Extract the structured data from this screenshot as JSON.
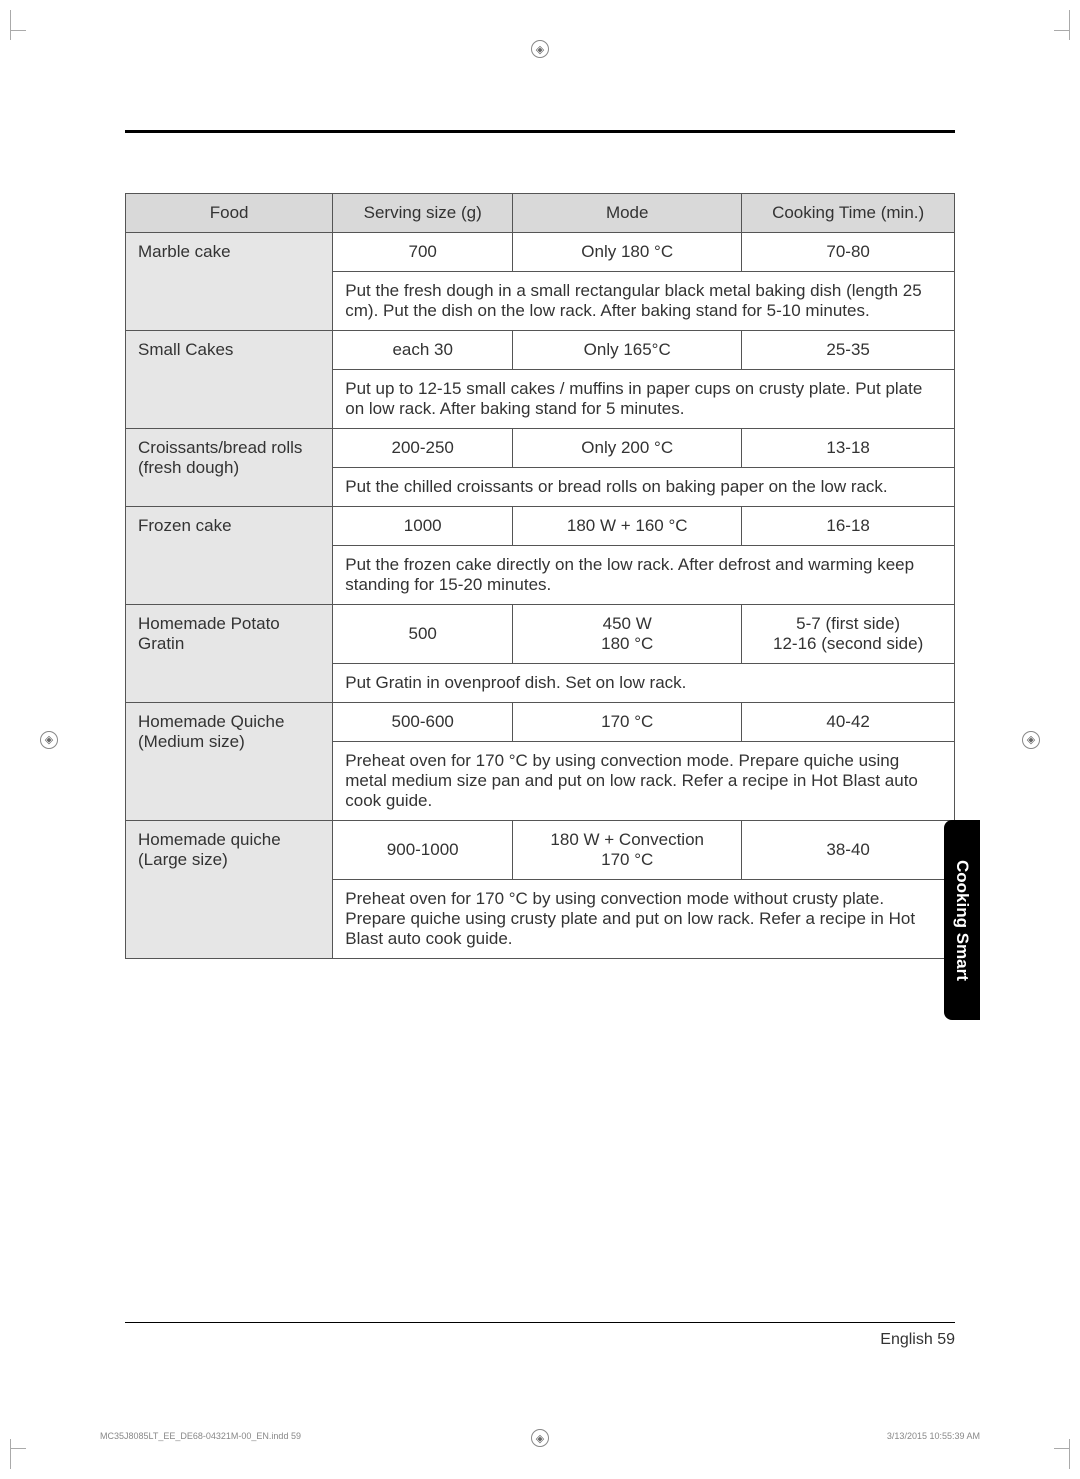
{
  "headers": {
    "food": "Food",
    "serving": "Serving size (g)",
    "mode": "Mode",
    "time": "Cooking Time (min.)"
  },
  "rows": {
    "marble": {
      "food": "Marble cake",
      "serving": "700",
      "mode": "Only 180 °C",
      "time": "70-80",
      "instr": "Put the fresh dough in a small rectangular black metal baking dish (length 25 cm). Put the dish on the low rack. After baking stand for 5-10 minutes."
    },
    "small_cakes": {
      "food": "Small Cakes",
      "serving": "each 30",
      "mode": "Only 165°C",
      "time": "25-35",
      "instr": "Put up to 12-15 small cakes / muffins in paper cups on crusty plate. Put plate on low rack. After baking stand for 5 minutes."
    },
    "croissants": {
      "food1": "Croissants/bread rolls",
      "food2": "(fresh dough)",
      "serving": "200-250",
      "mode": "Only 200 °C",
      "time": "13-18",
      "instr": "Put the chilled croissants or bread rolls on baking paper on the low rack."
    },
    "frozen_cake": {
      "food": "Frozen cake",
      "serving": "1000",
      "mode": "180 W + 160 °C",
      "time": "16-18",
      "instr": "Put the frozen cake directly on the low rack. After defrost and warming keep standing for 15-20 minutes."
    },
    "potato_gratin": {
      "food1": "Homemade Potato",
      "food2": "Gratin",
      "serving": "500",
      "mode1": "450 W",
      "mode2": "180 °C",
      "time1": "5-7 (first side)",
      "time2": "12-16 (second side)",
      "instr": "Put Gratin in ovenproof dish. Set on low rack."
    },
    "quiche_medium": {
      "food1": "Homemade Quiche",
      "food2": "(Medium size)",
      "serving": "500-600",
      "mode": "170 °C",
      "time": "40-42",
      "instr": "Preheat oven for 170 °C by using convection mode. Prepare quiche using metal medium size pan and put on low rack. Refer a recipe in Hot Blast auto cook guide."
    },
    "quiche_large": {
      "food1": "Homemade quiche",
      "food2": "(Large size)",
      "serving": "900-1000",
      "mode1": "180 W + Convection",
      "mode2": "170 °C",
      "time": "38-40",
      "instr": "Preheat oven for 170 °C by using convection mode without crusty plate. Prepare quiche using crusty plate and put on low rack. Refer a recipe in Hot Blast auto cook guide."
    }
  },
  "side_tab": "Cooking Smart",
  "footer_text": "English  59",
  "print_left": "MC35J8085LT_EE_DE68-04321M-00_EN.indd   59",
  "print_right": "3/13/2015   10:55:39 AM"
}
